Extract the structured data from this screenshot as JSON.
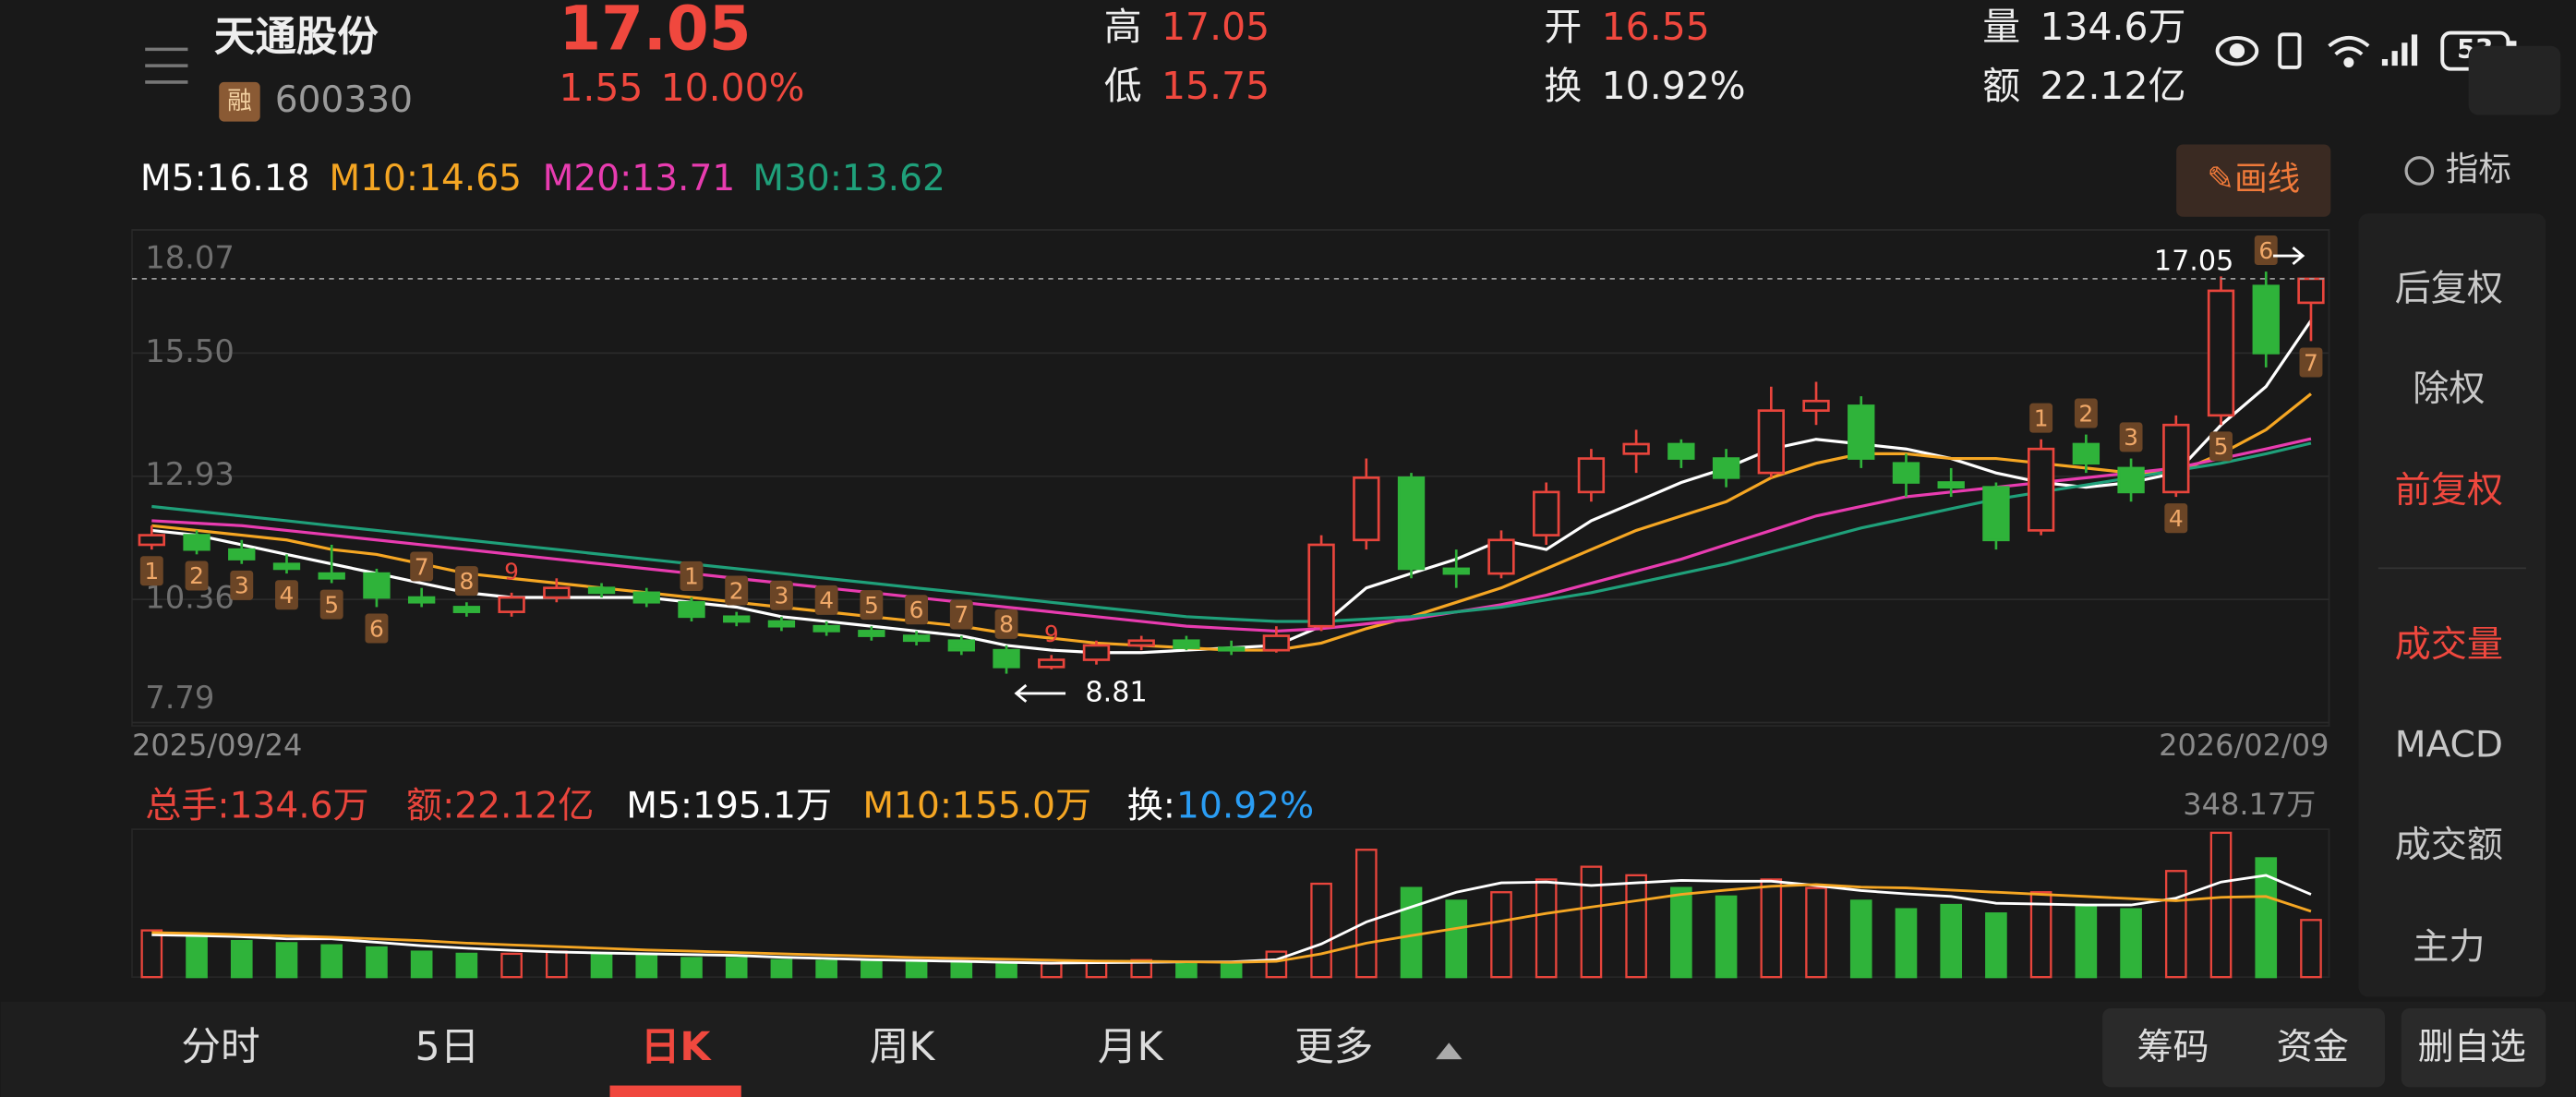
{
  "header": {
    "name": "天通股份",
    "tag": "融",
    "code": "600330",
    "price": "17.05",
    "change": "1.55",
    "pct": "10.00%",
    "stats": [
      {
        "k": "高",
        "v": "17.05"
      },
      {
        "k": "低",
        "v": "15.75"
      },
      {
        "k": "开",
        "v": "16.55"
      },
      {
        "k": "换",
        "v": "10.92%"
      },
      {
        "k": "量",
        "v": "134.6万"
      },
      {
        "k": "额",
        "v": "22.12亿"
      }
    ],
    "battery": "53"
  },
  "toolbar": {
    "draw": "✎画线",
    "indicator": "指标"
  },
  "side_menu": [
    {
      "text": "后复权",
      "active": false
    },
    {
      "text": "除权",
      "active": false
    },
    {
      "text": "前复权",
      "active": true
    },
    {
      "text": "成交量",
      "active": true
    },
    {
      "text": "MACD",
      "active": false
    },
    {
      "text": "成交额",
      "active": false
    },
    {
      "text": "主力",
      "active": false
    }
  ],
  "tabs": [
    {
      "text": "分时",
      "active": false
    },
    {
      "text": "5日",
      "active": false
    },
    {
      "text": "日K",
      "active": true
    },
    {
      "text": "周K",
      "active": false
    },
    {
      "text": "月K",
      "active": false
    },
    {
      "text": "更多",
      "active": false
    }
  ],
  "buttons": [
    "筹码",
    "资金",
    "删自选"
  ],
  "chart_data": {
    "type": "candlestick",
    "x_labels": [
      "2025/09/24",
      "2026/02/09"
    ],
    "ylim": [
      7.79,
      18.07
    ],
    "yticks": [
      18.07,
      {
        "value": 15.5,
        "label": "15.50"
      },
      12.93,
      10.36,
      7.79
    ],
    "up_color": "#e8453c",
    "down_color": "#2fb33a",
    "ohlc": [
      [
        11.5,
        11.9,
        11.4,
        11.7
      ],
      [
        11.7,
        11.8,
        11.3,
        11.4
      ],
      [
        11.4,
        11.6,
        11.1,
        11.2
      ],
      [
        11.1,
        11.3,
        10.9,
        11.0
      ],
      [
        10.9,
        11.5,
        10.7,
        10.8
      ],
      [
        10.9,
        11.0,
        10.2,
        10.4
      ],
      [
        10.4,
        10.6,
        10.2,
        10.3
      ],
      [
        10.2,
        10.3,
        10.0,
        10.1
      ],
      [
        10.1,
        10.5,
        10.0,
        10.4
      ],
      [
        10.4,
        10.8,
        10.3,
        10.6
      ],
      [
        10.6,
        10.7,
        10.4,
        10.5
      ],
      [
        10.5,
        10.6,
        10.2,
        10.3
      ],
      [
        10.3,
        10.4,
        9.9,
        10.0
      ],
      [
        10.0,
        10.1,
        9.8,
        9.9
      ],
      [
        9.9,
        10.0,
        9.7,
        9.8
      ],
      [
        9.8,
        9.9,
        9.6,
        9.7
      ],
      [
        9.7,
        9.8,
        9.5,
        9.6
      ],
      [
        9.6,
        9.7,
        9.4,
        9.5
      ],
      [
        9.5,
        9.6,
        9.2,
        9.3
      ],
      [
        9.3,
        9.4,
        8.81,
        8.95
      ],
      [
        8.95,
        9.2,
        8.9,
        9.1
      ],
      [
        9.1,
        9.5,
        9.0,
        9.4
      ],
      [
        9.4,
        9.6,
        9.3,
        9.5
      ],
      [
        9.5,
        9.6,
        9.3,
        9.35
      ],
      [
        9.35,
        9.5,
        9.2,
        9.3
      ],
      [
        9.3,
        9.8,
        9.25,
        9.6
      ],
      [
        9.8,
        11.7,
        9.7,
        11.5
      ],
      [
        11.6,
        13.3,
        11.4,
        12.9
      ],
      [
        12.9,
        13.0,
        10.8,
        11.0
      ],
      [
        11.0,
        11.4,
        10.6,
        10.9
      ],
      [
        10.9,
        11.8,
        10.8,
        11.6
      ],
      [
        11.7,
        12.8,
        11.5,
        12.6
      ],
      [
        12.6,
        13.5,
        12.4,
        13.3
      ],
      [
        13.4,
        13.9,
        13.0,
        13.6
      ],
      [
        13.6,
        13.7,
        13.1,
        13.3
      ],
      [
        13.3,
        13.5,
        12.7,
        12.9
      ],
      [
        13.0,
        14.8,
        12.9,
        14.3
      ],
      [
        14.3,
        14.9,
        14.0,
        14.5
      ],
      [
        14.4,
        14.6,
        13.1,
        13.3
      ],
      [
        13.2,
        13.4,
        12.5,
        12.8
      ],
      [
        12.8,
        13.1,
        12.5,
        12.7
      ],
      [
        12.7,
        12.8,
        11.4,
        11.6
      ],
      [
        11.8,
        13.7,
        11.7,
        13.5
      ],
      [
        13.6,
        13.8,
        13.0,
        13.2
      ],
      [
        13.1,
        13.3,
        12.4,
        12.6
      ],
      [
        12.6,
        14.2,
        12.5,
        14.0
      ],
      [
        14.2,
        17.1,
        14.0,
        16.8
      ],
      [
        16.9,
        17.2,
        15.2,
        15.5
      ],
      [
        16.55,
        17.05,
        15.75,
        17.05
      ]
    ],
    "ma": [
      {
        "label": "M5:16.18",
        "color": "#ffffff",
        "values": [
          11.8,
          11.7,
          11.5,
          11.3,
          11.1,
          10.9,
          10.7,
          10.5,
          10.4,
          10.4,
          10.4,
          10.4,
          10.3,
          10.2,
          10.0,
          9.9,
          9.8,
          9.7,
          9.6,
          9.4,
          9.3,
          9.25,
          9.25,
          9.3,
          9.35,
          9.4,
          9.8,
          10.6,
          10.9,
          11.2,
          11.6,
          11.4,
          12.0,
          12.4,
          12.8,
          13.1,
          13.5,
          13.7,
          13.6,
          13.5,
          13.3,
          13.0,
          12.8,
          12.7,
          12.8,
          13.0,
          14.0,
          14.8,
          16.18
        ]
      },
      {
        "label": "M10:14.65",
        "color": "#f5a623",
        "values": [
          11.9,
          11.8,
          11.7,
          11.6,
          11.4,
          11.3,
          11.1,
          10.9,
          10.8,
          10.7,
          10.6,
          10.5,
          10.4,
          10.3,
          10.2,
          10.1,
          10.0,
          9.9,
          9.8,
          9.65,
          9.55,
          9.45,
          9.4,
          9.35,
          9.3,
          9.3,
          9.45,
          9.75,
          10.0,
          10.3,
          10.6,
          11.0,
          11.4,
          11.8,
          12.1,
          12.4,
          12.9,
          13.2,
          13.4,
          13.4,
          13.3,
          13.3,
          13.2,
          13.1,
          13.0,
          13.0,
          13.4,
          13.9,
          14.65
        ]
      },
      {
        "label": "M20:13.71",
        "color": "#e83cb0",
        "values": [
          12.0,
          11.95,
          11.9,
          11.8,
          11.7,
          11.6,
          11.5,
          11.4,
          11.3,
          11.2,
          11.1,
          11.0,
          10.9,
          10.8,
          10.7,
          10.6,
          10.5,
          10.4,
          10.3,
          10.2,
          10.1,
          10.0,
          9.9,
          9.8,
          9.75,
          9.7,
          9.75,
          9.85,
          9.95,
          10.1,
          10.25,
          10.45,
          10.7,
          10.95,
          11.2,
          11.5,
          11.8,
          12.1,
          12.3,
          12.5,
          12.6,
          12.7,
          12.8,
          12.9,
          13.0,
          13.1,
          13.3,
          13.5,
          13.71
        ]
      },
      {
        "label": "M30:13.62",
        "color": "#1fa07a",
        "values": [
          12.3,
          12.2,
          12.1,
          12.0,
          11.9,
          11.8,
          11.7,
          11.6,
          11.5,
          11.4,
          11.3,
          11.2,
          11.1,
          11.0,
          10.9,
          10.8,
          10.7,
          10.6,
          10.5,
          10.4,
          10.3,
          10.2,
          10.1,
          10.0,
          9.95,
          9.9,
          9.9,
          9.95,
          10.0,
          10.1,
          10.2,
          10.35,
          10.5,
          10.7,
          10.9,
          11.1,
          11.35,
          11.6,
          11.85,
          12.05,
          12.25,
          12.45,
          12.6,
          12.75,
          12.9,
          13.05,
          13.2,
          13.4,
          13.62
        ]
      }
    ],
    "td_marks": [
      {
        "i": 0,
        "t": "1",
        "pos": "below",
        "plain": false
      },
      {
        "i": 1,
        "t": "2",
        "pos": "below",
        "plain": false
      },
      {
        "i": 2,
        "t": "3",
        "pos": "below",
        "plain": false
      },
      {
        "i": 3,
        "t": "4",
        "pos": "below",
        "plain": false
      },
      {
        "i": 4,
        "t": "5",
        "pos": "below",
        "plain": false
      },
      {
        "i": 5,
        "t": "6",
        "pos": "below",
        "plain": false
      },
      {
        "i": 6,
        "t": "7",
        "pos": "above",
        "plain": false
      },
      {
        "i": 7,
        "t": "8",
        "pos": "above",
        "plain": false
      },
      {
        "i": 8,
        "t": "9",
        "pos": "above",
        "plain": true
      },
      {
        "i": 12,
        "t": "1",
        "pos": "above",
        "plain": false
      },
      {
        "i": 13,
        "t": "2",
        "pos": "above",
        "plain": false
      },
      {
        "i": 14,
        "t": "3",
        "pos": "above",
        "plain": false
      },
      {
        "i": 15,
        "t": "4",
        "pos": "above",
        "plain": false
      },
      {
        "i": 16,
        "t": "5",
        "pos": "above",
        "plain": false
      },
      {
        "i": 17,
        "t": "6",
        "pos": "above",
        "plain": false
      },
      {
        "i": 18,
        "t": "7",
        "pos": "above",
        "plain": false
      },
      {
        "i": 19,
        "t": "8",
        "pos": "above",
        "plain": false
      },
      {
        "i": 20,
        "t": "9",
        "pos": "above",
        "plain": true
      },
      {
        "i": 42,
        "t": "1",
        "pos": "above",
        "plain": false
      },
      {
        "i": 43,
        "t": "2",
        "pos": "above",
        "plain": false
      },
      {
        "i": 44,
        "t": "3",
        "pos": "above",
        "plain": false
      },
      {
        "i": 45,
        "t": "4",
        "pos": "below",
        "plain": false
      },
      {
        "i": 46,
        "t": "5",
        "pos": "below",
        "plain": false
      },
      {
        "i": 47,
        "t": "6",
        "pos": "above",
        "plain": false
      },
      {
        "i": 48,
        "t": "7",
        "pos": "below",
        "plain": false
      }
    ],
    "volume": {
      "ylim": [
        0,
        348.17
      ],
      "yticks": [
        {
          "value": 348.17,
          "label": "348.17万"
        }
      ],
      "values": [
        110,
        100,
        85,
        80,
        75,
        70,
        60,
        55,
        55,
        60,
        55,
        50,
        45,
        45,
        40,
        38,
        36,
        35,
        34,
        30,
        32,
        38,
        40,
        35,
        33,
        60,
        220,
        300,
        210,
        180,
        200,
        230,
        260,
        240,
        210,
        190,
        230,
        210,
        180,
        160,
        170,
        150,
        200,
        170,
        160,
        250,
        340,
        280,
        134.6
      ],
      "ma": [
        {
          "label": "M5:195.1万",
          "color": "#ffffff",
          "values": [
            100,
            98,
            95,
            90,
            90,
            82,
            74,
            68,
            63,
            59,
            57,
            55,
            53,
            51,
            47,
            44,
            41,
            39,
            37,
            35,
            33,
            34,
            35,
            36,
            36,
            41,
            78,
            130,
            165,
            200,
            222,
            224,
            216,
            222,
            228,
            226,
            226,
            216,
            204,
            196,
            190,
            174,
            172,
            170,
            170,
            186,
            224,
            240,
            195.1
          ]
        },
        {
          "label": "M10:155.0万",
          "color": "#f5a623",
          "values": [
            105,
            103,
            100,
            97,
            94,
            90,
            86,
            80,
            76,
            72,
            68,
            64,
            61,
            58,
            55,
            52,
            49,
            46,
            44,
            42,
            40,
            38,
            37,
            36,
            35,
            37,
            55,
            80,
            98,
            115,
            132,
            150,
            165,
            180,
            195,
            205,
            214,
            218,
            212,
            210,
            205,
            200,
            195,
            190,
            185,
            180,
            188,
            190,
            155
          ]
        }
      ],
      "legend": [
        {
          "text": "总手:134.6万",
          "color": "#e8453c"
        },
        {
          "text": "额:22.12亿",
          "color": "#e8453c"
        },
        {
          "text": "换:",
          "color": "#ffffff"
        },
        {
          "text": "10.92%",
          "color": "#2a9df4"
        }
      ]
    }
  }
}
